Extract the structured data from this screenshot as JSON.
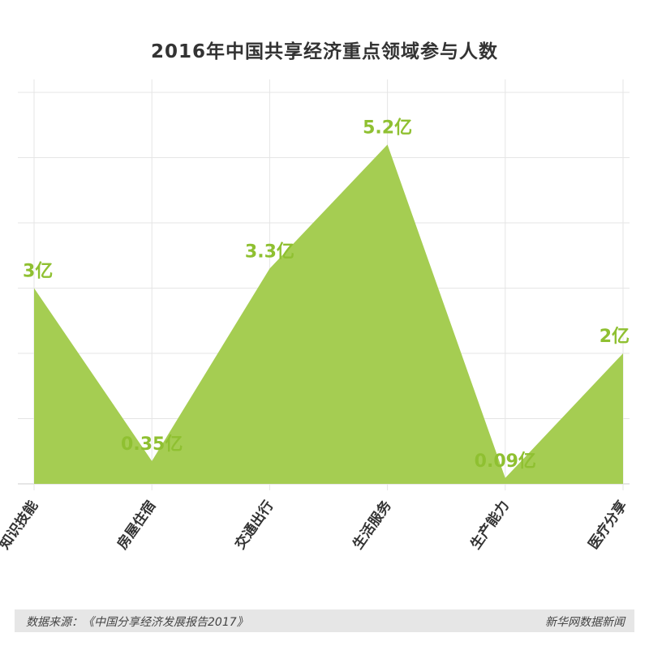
{
  "chart_data": {
    "type": "area",
    "title": "2016年中国共享经济重点领域参与人数",
    "categories": [
      "知识技能",
      "房屋住宿",
      "交通出行",
      "生活服务",
      "生产能力",
      "医疗分享"
    ],
    "values": [
      3,
      0.35,
      3.3,
      5.2,
      0.09,
      2
    ],
    "data_labels": [
      "3亿",
      "0.35亿",
      "3.3亿",
      "5.2亿",
      "0.09亿",
      "2亿"
    ],
    "xlabel": "",
    "ylabel": "",
    "ylim": [
      0,
      6
    ],
    "grid": true,
    "colors": {
      "fill": "#a5cd52",
      "label": "#8fc031",
      "grid": "#e5e5e5",
      "axis": "#cccccc"
    }
  },
  "footer": {
    "source": "数据来源：《中国分享经济发展报告2017》",
    "brand": "新华网数据新闻"
  }
}
